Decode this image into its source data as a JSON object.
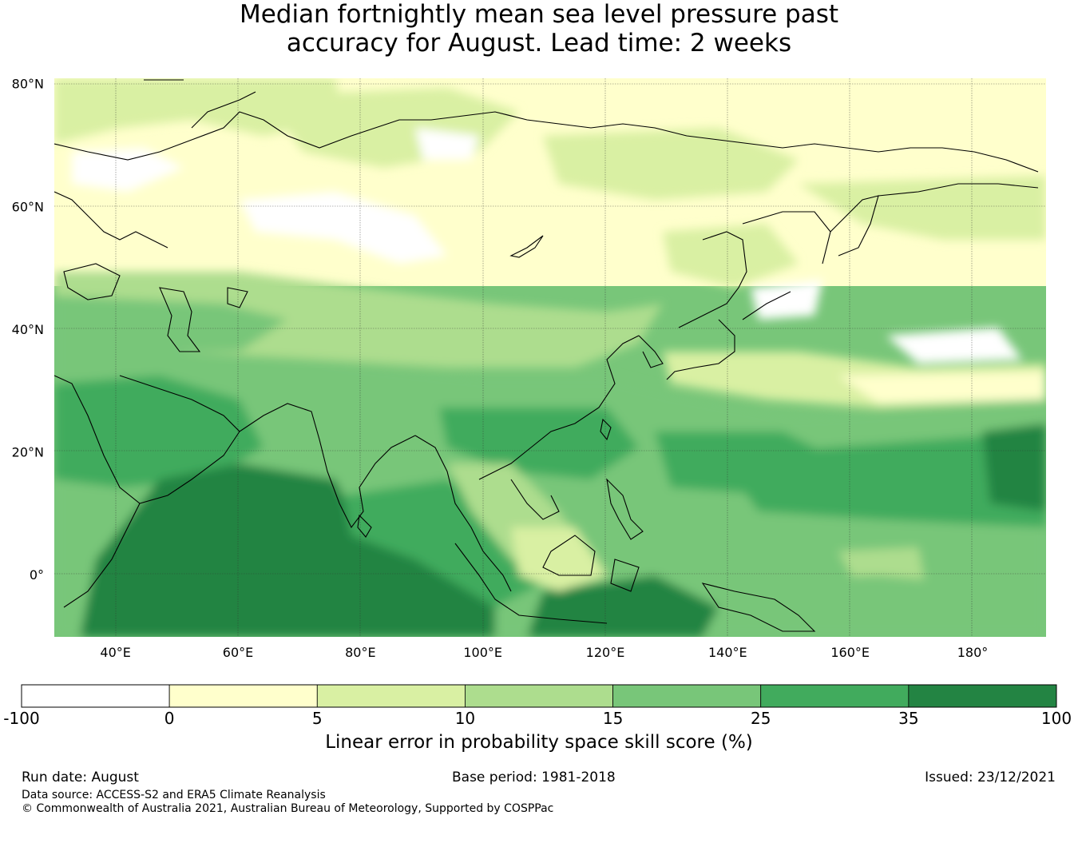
{
  "title_line1": "Median fortnightly mean sea level pressure past",
  "title_line2": "accuracy for August. Lead time: 2 weeks",
  "map": {
    "lon_range": [
      30,
      192
    ],
    "lat_range": [
      -10,
      81
    ],
    "lon_ticks": [
      40,
      60,
      80,
      100,
      120,
      140,
      160,
      180
    ],
    "lon_tick_labels": [
      "40°E",
      "60°E",
      "80°E",
      "100°E",
      "120°E",
      "140°E",
      "160°E",
      "180°"
    ],
    "lat_ticks": [
      80,
      60,
      40,
      20,
      0
    ],
    "lat_tick_labels": [
      "80°N",
      "60°N",
      "40°N",
      "20°N",
      "0°"
    ],
    "gridlines": true,
    "coastlines": true
  },
  "colorbar": {
    "title": "Linear error in probability space skill score (%)",
    "bounds": [
      -100,
      0,
      5,
      10,
      15,
      25,
      35,
      100
    ],
    "tick_labels": [
      "-100",
      "0",
      "5",
      "10",
      "15",
      "25",
      "35",
      "100"
    ],
    "colors": [
      "#ffffff",
      "#ffffcc",
      "#d9f0a3",
      "#addd8e",
      "#78c679",
      "#41ab5d",
      "#238443"
    ]
  },
  "footer": {
    "run_date": "Run date: August",
    "base_period": "Base period: 1981-2018",
    "issued": "Issued: 23/12/2021",
    "data_source": "Data source: ACCESS-S2 and ERA5 Climate Reanalysis",
    "copyright": "© Commonwealth of Australia 2021, Australian Bureau of Meteorology, Supported by COSPPac"
  }
}
